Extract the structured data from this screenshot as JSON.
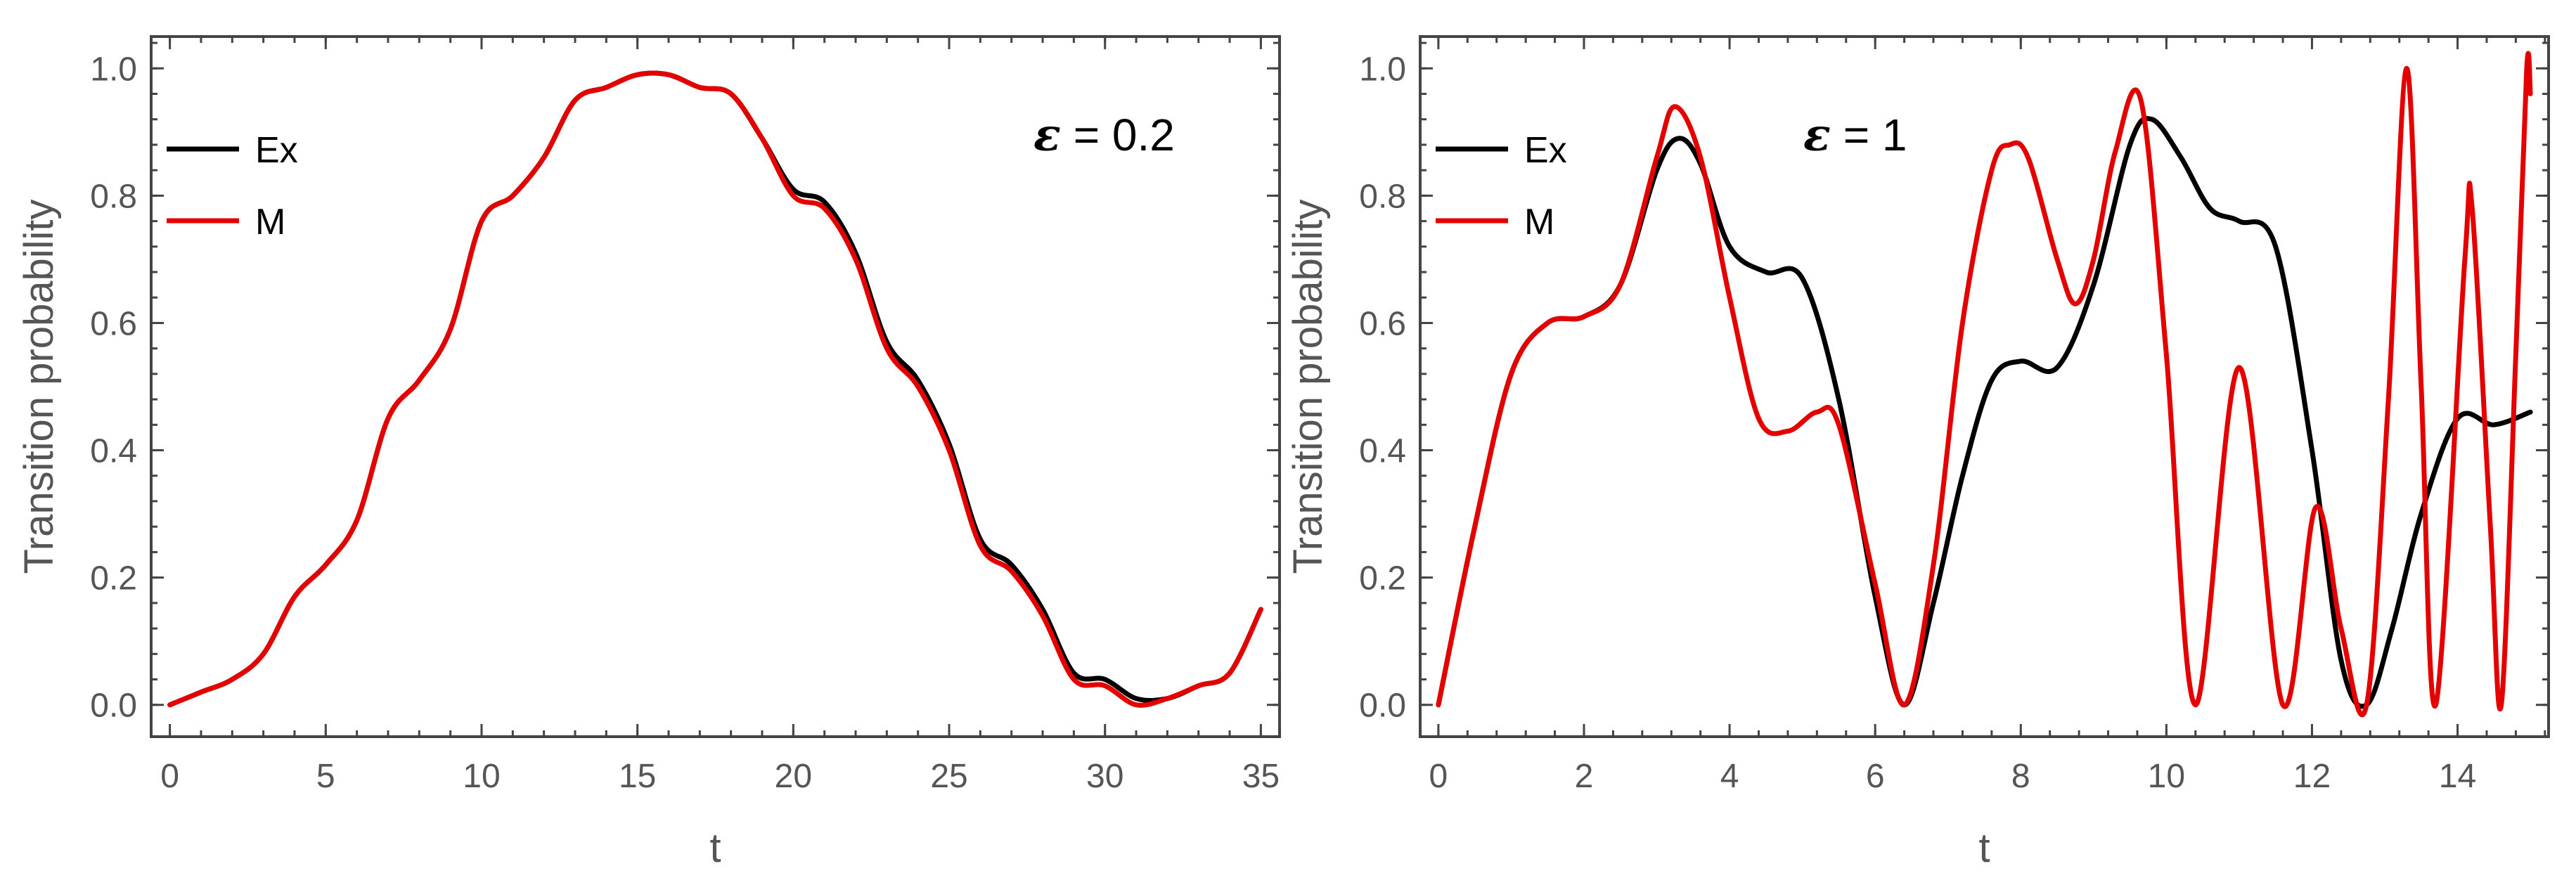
{
  "chart_data": [
    {
      "type": "line",
      "xlabel": "t",
      "ylabel": "Transition  probability",
      "xlim": [
        -0.6,
        35.6
      ],
      "ylim": [
        -0.05,
        1.05
      ],
      "xticks": [
        0,
        5,
        10,
        15,
        20,
        25,
        30,
        35
      ],
      "yticks": [
        0.0,
        0.2,
        0.4,
        0.6,
        0.8,
        1.0
      ],
      "xtick_labels": [
        "0",
        "5",
        "10",
        "15",
        "20",
        "25",
        "30",
        "35"
      ],
      "ytick_labels": [
        "0.0",
        "0.2",
        "0.4",
        "0.6",
        "0.8",
        "1.0"
      ],
      "grid": false,
      "legend_position": "top-left",
      "annotation": {
        "symbol": "ε",
        "text": " = 0.2"
      },
      "series": [
        {
          "name": "Ex",
          "color": "#000000",
          "x": [
            0,
            1,
            2,
            3,
            4,
            5,
            6,
            7,
            8,
            9,
            10,
            11,
            12,
            13,
            14,
            15,
            16,
            17,
            18,
            19,
            20,
            21,
            22,
            23,
            24,
            25,
            26,
            27,
            28,
            29,
            30,
            31,
            32,
            33,
            34,
            35
          ],
          "y": [
            0.0,
            0.02,
            0.04,
            0.08,
            0.17,
            0.22,
            0.29,
            0.45,
            0.51,
            0.59,
            0.76,
            0.8,
            0.86,
            0.95,
            0.97,
            0.99,
            0.99,
            0.97,
            0.96,
            0.89,
            0.81,
            0.79,
            0.71,
            0.57,
            0.51,
            0.41,
            0.26,
            0.22,
            0.15,
            0.05,
            0.04,
            0.01,
            0.01,
            0.03,
            0.05,
            0.15
          ]
        },
        {
          "name": "M",
          "color": "#e50000",
          "x": [
            0,
            1,
            2,
            3,
            4,
            5,
            6,
            7,
            8,
            9,
            10,
            11,
            12,
            13,
            14,
            15,
            16,
            17,
            18,
            19,
            20,
            21,
            22,
            23,
            24,
            25,
            26,
            27,
            28,
            29,
            30,
            31,
            32,
            33,
            34,
            35
          ],
          "y": [
            0.0,
            0.02,
            0.04,
            0.08,
            0.17,
            0.22,
            0.29,
            0.45,
            0.51,
            0.59,
            0.76,
            0.8,
            0.86,
            0.95,
            0.97,
            0.99,
            0.99,
            0.97,
            0.96,
            0.89,
            0.8,
            0.78,
            0.7,
            0.56,
            0.5,
            0.4,
            0.25,
            0.21,
            0.14,
            0.04,
            0.03,
            0.0,
            0.01,
            0.03,
            0.05,
            0.15
          ]
        }
      ]
    },
    {
      "type": "line",
      "xlabel": "t",
      "ylabel": "Transition  probability",
      "xlim": [
        -0.25,
        15.25
      ],
      "ylim": [
        -0.05,
        1.05
      ],
      "xticks": [
        0,
        2,
        4,
        6,
        8,
        10,
        12,
        14
      ],
      "yticks": [
        0.0,
        0.2,
        0.4,
        0.6,
        0.8,
        1.0
      ],
      "xtick_labels": [
        "0",
        "2",
        "4",
        "6",
        "8",
        "10",
        "12",
        "14"
      ],
      "ytick_labels": [
        "0.0",
        "0.2",
        "0.4",
        "0.6",
        "0.8",
        "1.0"
      ],
      "grid": false,
      "legend_position": "top-left",
      "annotation": {
        "symbol": "ε",
        "text": " = 1"
      },
      "series": [
        {
          "name": "Ex",
          "color": "#000000",
          "x": [
            0,
            0.5,
            1.0,
            1.5,
            2.0,
            2.5,
            3.0,
            3.3,
            3.6,
            4.0,
            4.5,
            5.0,
            5.5,
            6.0,
            6.4,
            6.8,
            7.2,
            7.6,
            8.0,
            8.5,
            9.0,
            9.5,
            9.8,
            10.2,
            10.6,
            11.0,
            11.5,
            12.0,
            12.4,
            12.75,
            13.1,
            13.5,
            14.0,
            14.5,
            15.0
          ],
          "y": [
            0.0,
            0.28,
            0.52,
            0.6,
            0.61,
            0.66,
            0.84,
            0.89,
            0.85,
            0.72,
            0.68,
            0.67,
            0.48,
            0.17,
            0.0,
            0.16,
            0.36,
            0.51,
            0.54,
            0.53,
            0.66,
            0.88,
            0.92,
            0.86,
            0.78,
            0.76,
            0.72,
            0.4,
            0.07,
            0.0,
            0.12,
            0.3,
            0.45,
            0.44,
            0.46
          ]
        },
        {
          "name": "M",
          "color": "#e50000",
          "x": [
            0,
            0.5,
            1.0,
            1.5,
            2.0,
            2.5,
            3.0,
            3.25,
            3.6,
            4.0,
            4.4,
            4.8,
            5.2,
            5.5,
            6.0,
            6.4,
            6.8,
            7.2,
            7.6,
            7.85,
            8.1,
            8.5,
            8.75,
            9.0,
            9.3,
            9.65,
            10.0,
            10.4,
            11.0,
            11.6,
            12.05,
            12.4,
            12.75,
            13.05,
            13.3,
            13.5,
            13.7,
            14.1,
            14.2,
            14.45,
            14.6,
            14.8,
            14.95,
            15.0
          ],
          "y": [
            0.0,
            0.28,
            0.52,
            0.6,
            0.61,
            0.66,
            0.86,
            0.94,
            0.86,
            0.64,
            0.45,
            0.43,
            0.46,
            0.44,
            0.19,
            0.0,
            0.22,
            0.6,
            0.84,
            0.88,
            0.86,
            0.7,
            0.63,
            0.7,
            0.87,
            0.95,
            0.55,
            0.0,
            0.53,
            0.0,
            0.31,
            0.12,
            0.0,
            0.48,
            1.0,
            0.5,
            0.0,
            0.7,
            0.78,
            0.28,
            0.0,
            0.55,
            1.0,
            0.96
          ]
        }
      ]
    }
  ]
}
